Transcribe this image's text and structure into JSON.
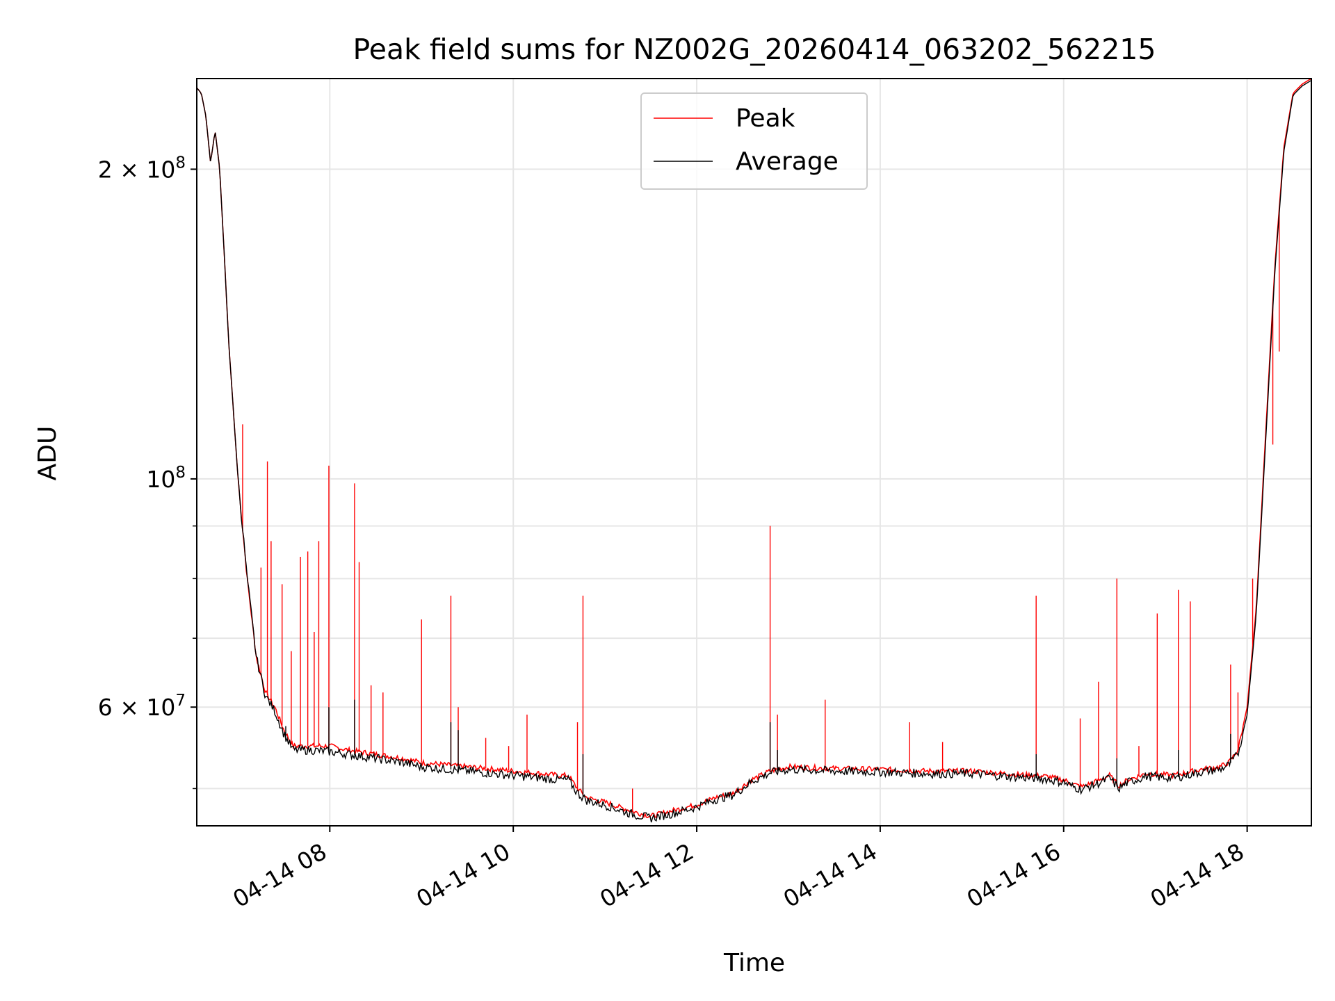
{
  "chart_data": {
    "type": "line",
    "title": "Peak field sums for NZ002G_20260414_063202_562215",
    "xlabel": "Time",
    "ylabel": "ADU",
    "yscale": "log",
    "ylim": [
      46000000,
      245000000
    ],
    "xlim_hours": [
      6.55,
      18.7
    ],
    "grid": true,
    "legend_position": "top-center",
    "x_ticks": [
      {
        "label": "04-14 08",
        "hour": 8
      },
      {
        "label": "04-14 10",
        "hour": 10
      },
      {
        "label": "04-14 12",
        "hour": 12
      },
      {
        "label": "04-14 14",
        "hour": 14
      },
      {
        "label": "04-14 16",
        "hour": 16
      },
      {
        "label": "04-14 18",
        "hour": 18
      }
    ],
    "y_ticks": [
      {
        "label": "2 × 10",
        "exp": "8",
        "value": 200000000
      },
      {
        "label": "10",
        "exp": "8",
        "value": 100000000
      },
      {
        "label": "6 × 10",
        "exp": "7",
        "value": 60000000
      }
    ],
    "y_minor_ticks": [
      50000000,
      70000000,
      80000000,
      90000000
    ],
    "series": [
      {
        "name": "Peak",
        "color": "#ff0000",
        "hours": [
          6.55,
          6.6,
          6.65,
          6.7,
          6.75,
          6.8,
          6.85,
          6.9,
          7.0,
          7.1,
          7.2,
          7.3,
          7.4,
          7.5,
          7.6,
          7.8,
          8.0,
          8.2,
          8.5,
          8.8,
          9.0,
          9.5,
          10.0,
          10.5,
          10.6,
          10.7,
          10.8,
          11.0,
          11.3,
          11.5,
          11.7,
          11.9,
          12.0,
          12.2,
          12.4,
          12.6,
          12.8,
          13.0,
          13.5,
          14.0,
          14.5,
          15.0,
          15.5,
          15.8,
          16.0,
          16.1,
          16.2,
          16.4,
          16.5,
          16.6,
          16.7,
          16.9,
          17.2,
          17.5,
          17.7,
          17.8,
          17.9,
          18.0,
          18.1,
          18.2,
          18.3,
          18.4,
          18.5,
          18.6,
          18.7
        ],
        "values": [
          240000000,
          237000000,
          225000000,
          203000000,
          218000000,
          200000000,
          165000000,
          135000000,
          100000000,
          80000000,
          67000000,
          62000000,
          60000000,
          57000000,
          55000000,
          55000000,
          55000000,
          54500000,
          54000000,
          53500000,
          53000000,
          52500000,
          52000000,
          51500000,
          51500000,
          50000000,
          49000000,
          48500000,
          47500000,
          47000000,
          47500000,
          48000000,
          48200000,
          49000000,
          49500000,
          51000000,
          52000000,
          52500000,
          52300000,
          52200000,
          52000000,
          52000000,
          51600000,
          51400000,
          51000000,
          50500000,
          50200000,
          51000000,
          51500000,
          50300000,
          51000000,
          51700000,
          51500000,
          52200000,
          52500000,
          53000000,
          54500000,
          60000000,
          75000000,
          110000000,
          160000000,
          210000000,
          237000000,
          242000000,
          245000000
        ],
        "spikes": [
          {
            "hour": 7.05,
            "value": 113000000
          },
          {
            "hour": 7.25,
            "value": 82000000
          },
          {
            "hour": 7.32,
            "value": 104000000
          },
          {
            "hour": 7.36,
            "value": 87000000
          },
          {
            "hour": 7.48,
            "value": 79000000
          },
          {
            "hour": 7.58,
            "value": 68000000
          },
          {
            "hour": 7.68,
            "value": 84000000
          },
          {
            "hour": 7.76,
            "value": 85000000
          },
          {
            "hour": 7.83,
            "value": 71000000
          },
          {
            "hour": 7.88,
            "value": 87000000
          },
          {
            "hour": 7.99,
            "value": 103000000
          },
          {
            "hour": 8.27,
            "value": 99000000
          },
          {
            "hour": 8.32,
            "value": 83000000
          },
          {
            "hour": 8.45,
            "value": 63000000
          },
          {
            "hour": 8.58,
            "value": 62000000
          },
          {
            "hour": 9.0,
            "value": 73000000
          },
          {
            "hour": 9.32,
            "value": 77000000
          },
          {
            "hour": 9.4,
            "value": 60000000
          },
          {
            "hour": 9.7,
            "value": 56000000
          },
          {
            "hour": 9.95,
            "value": 55000000
          },
          {
            "hour": 10.15,
            "value": 59000000
          },
          {
            "hour": 10.7,
            "value": 58000000
          },
          {
            "hour": 10.76,
            "value": 77000000
          },
          {
            "hour": 11.3,
            "value": 50000000
          },
          {
            "hour": 12.8,
            "value": 90000000
          },
          {
            "hour": 12.88,
            "value": 59000000
          },
          {
            "hour": 13.4,
            "value": 61000000
          },
          {
            "hour": 14.32,
            "value": 58000000
          },
          {
            "hour": 14.68,
            "value": 55500000
          },
          {
            "hour": 15.7,
            "value": 77000000
          },
          {
            "hour": 16.18,
            "value": 58500000
          },
          {
            "hour": 16.38,
            "value": 63500000
          },
          {
            "hour": 16.58,
            "value": 80000000
          },
          {
            "hour": 16.82,
            "value": 55000000
          },
          {
            "hour": 17.02,
            "value": 74000000
          },
          {
            "hour": 17.25,
            "value": 78000000
          },
          {
            "hour": 17.38,
            "value": 76000000
          },
          {
            "hour": 17.82,
            "value": 66000000
          },
          {
            "hour": 17.9,
            "value": 62000000
          },
          {
            "hour": 18.06,
            "value": 80000000
          },
          {
            "hour": 18.28,
            "value": 108000000
          },
          {
            "hour": 18.35,
            "value": 133000000
          }
        ]
      },
      {
        "name": "Average",
        "color": "#000000",
        "hours": [
          6.55,
          6.6,
          6.65,
          6.7,
          6.75,
          6.8,
          6.85,
          6.9,
          7.0,
          7.1,
          7.2,
          7.3,
          7.4,
          7.5,
          7.6,
          7.8,
          8.0,
          8.2,
          8.5,
          8.8,
          9.0,
          9.5,
          10.0,
          10.5,
          10.6,
          10.7,
          10.8,
          11.0,
          11.3,
          11.5,
          11.7,
          11.9,
          12.0,
          12.2,
          12.4,
          12.6,
          12.8,
          13.0,
          13.5,
          14.0,
          14.5,
          15.0,
          15.5,
          15.8,
          16.0,
          16.1,
          16.2,
          16.4,
          16.5,
          16.6,
          16.7,
          16.9,
          17.2,
          17.5,
          17.7,
          17.8,
          17.9,
          18.0,
          18.1,
          18.2,
          18.3,
          18.4,
          18.5,
          18.6,
          18.7
        ],
        "values": [
          240000000,
          237000000,
          225000000,
          203000000,
          218000000,
          200000000,
          165000000,
          135000000,
          100000000,
          80000000,
          67000000,
          61500000,
          59500000,
          56500000,
          54500000,
          54500000,
          54300000,
          54000000,
          53500000,
          53000000,
          52500000,
          52000000,
          51500000,
          51000000,
          51000000,
          49500000,
          48700000,
          48200000,
          47200000,
          46800000,
          47200000,
          47700000,
          48000000,
          48800000,
          49300000,
          50800000,
          51800000,
          52200000,
          52000000,
          51900000,
          51700000,
          51700000,
          51300000,
          51100000,
          50700000,
          50200000,
          49900000,
          50700000,
          51200000,
          50000000,
          50700000,
          51400000,
          51200000,
          51900000,
          52200000,
          52700000,
          54000000,
          59000000,
          74000000,
          108000000,
          158000000,
          208000000,
          236000000,
          241000000,
          244000000
        ],
        "spikes": [
          {
            "hour": 7.52,
            "value": 57500000
          },
          {
            "hour": 7.99,
            "value": 60000000
          },
          {
            "hour": 8.27,
            "value": 61000000
          },
          {
            "hour": 9.32,
            "value": 58000000
          },
          {
            "hour": 9.4,
            "value": 57000000
          },
          {
            "hour": 10.76,
            "value": 54000000
          },
          {
            "hour": 12.8,
            "value": 58000000
          },
          {
            "hour": 12.88,
            "value": 54500000
          },
          {
            "hour": 15.7,
            "value": 54000000
          },
          {
            "hour": 16.58,
            "value": 53500000
          },
          {
            "hour": 17.25,
            "value": 54500000
          },
          {
            "hour": 17.82,
            "value": 56500000
          }
        ]
      }
    ]
  }
}
